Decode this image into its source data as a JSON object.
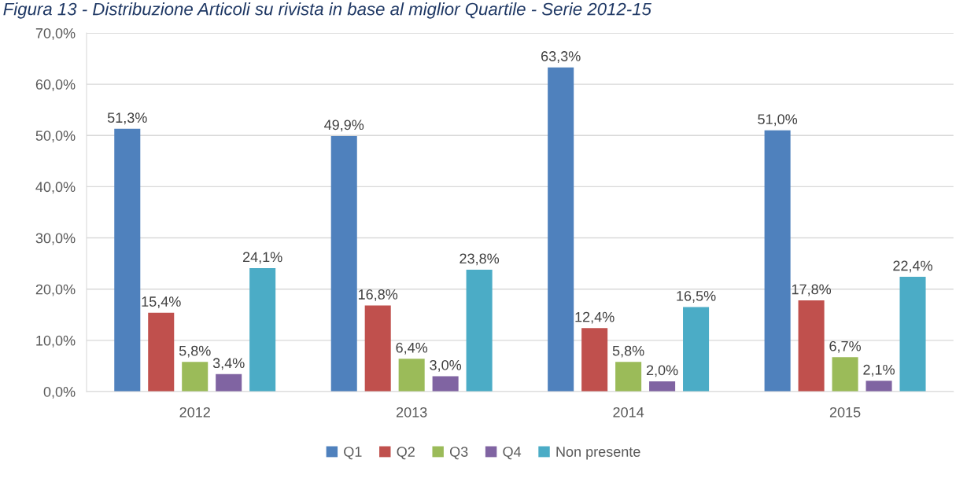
{
  "chart_data": {
    "type": "bar",
    "title": "Figura 13 - Distribuzione Articoli su rivista in base al miglior Quartile - Serie 2012-15",
    "categories": [
      "2012",
      "2013",
      "2014",
      "2015"
    ],
    "series": [
      {
        "name": "Q1",
        "color": "#4f81bd",
        "values": [
          51.3,
          49.9,
          63.3,
          51.0
        ],
        "value_labels": [
          "51,3%",
          "49,9%",
          "63,3%",
          "51,0%"
        ]
      },
      {
        "name": "Q2",
        "color": "#c0504d",
        "values": [
          15.4,
          16.8,
          12.4,
          17.8
        ],
        "value_labels": [
          "15,4%",
          "16,8%",
          "12,4%",
          "17,8%"
        ]
      },
      {
        "name": "Q3",
        "color": "#9bbb59",
        "values": [
          5.8,
          6.4,
          5.8,
          6.7
        ],
        "value_labels": [
          "5,8%",
          "6,4%",
          "5,8%",
          "6,7%"
        ]
      },
      {
        "name": "Q4",
        "color": "#8064a2",
        "values": [
          3.4,
          3.0,
          2.0,
          2.1
        ],
        "value_labels": [
          "3,4%",
          "3,0%",
          "2,0%",
          "2,1%"
        ]
      },
      {
        "name": "Non presente",
        "color": "#4bacc6",
        "values": [
          24.1,
          23.8,
          16.5,
          22.4
        ],
        "value_labels": [
          "24,1%",
          "23,8%",
          "16,5%",
          "22,4%"
        ]
      }
    ],
    "ylim": [
      0,
      70
    ],
    "yticks": [
      {
        "value": 0,
        "label": "0,0%"
      },
      {
        "value": 10,
        "label": "10,0%"
      },
      {
        "value": 20,
        "label": "20,0%"
      },
      {
        "value": 30,
        "label": "30,0%"
      },
      {
        "value": 40,
        "label": "40,0%"
      },
      {
        "value": 50,
        "label": "50,0%"
      },
      {
        "value": 60,
        "label": "60,0%"
      },
      {
        "value": 70,
        "label": "70,0%"
      }
    ],
    "grid": "y",
    "legend": "bottom"
  }
}
